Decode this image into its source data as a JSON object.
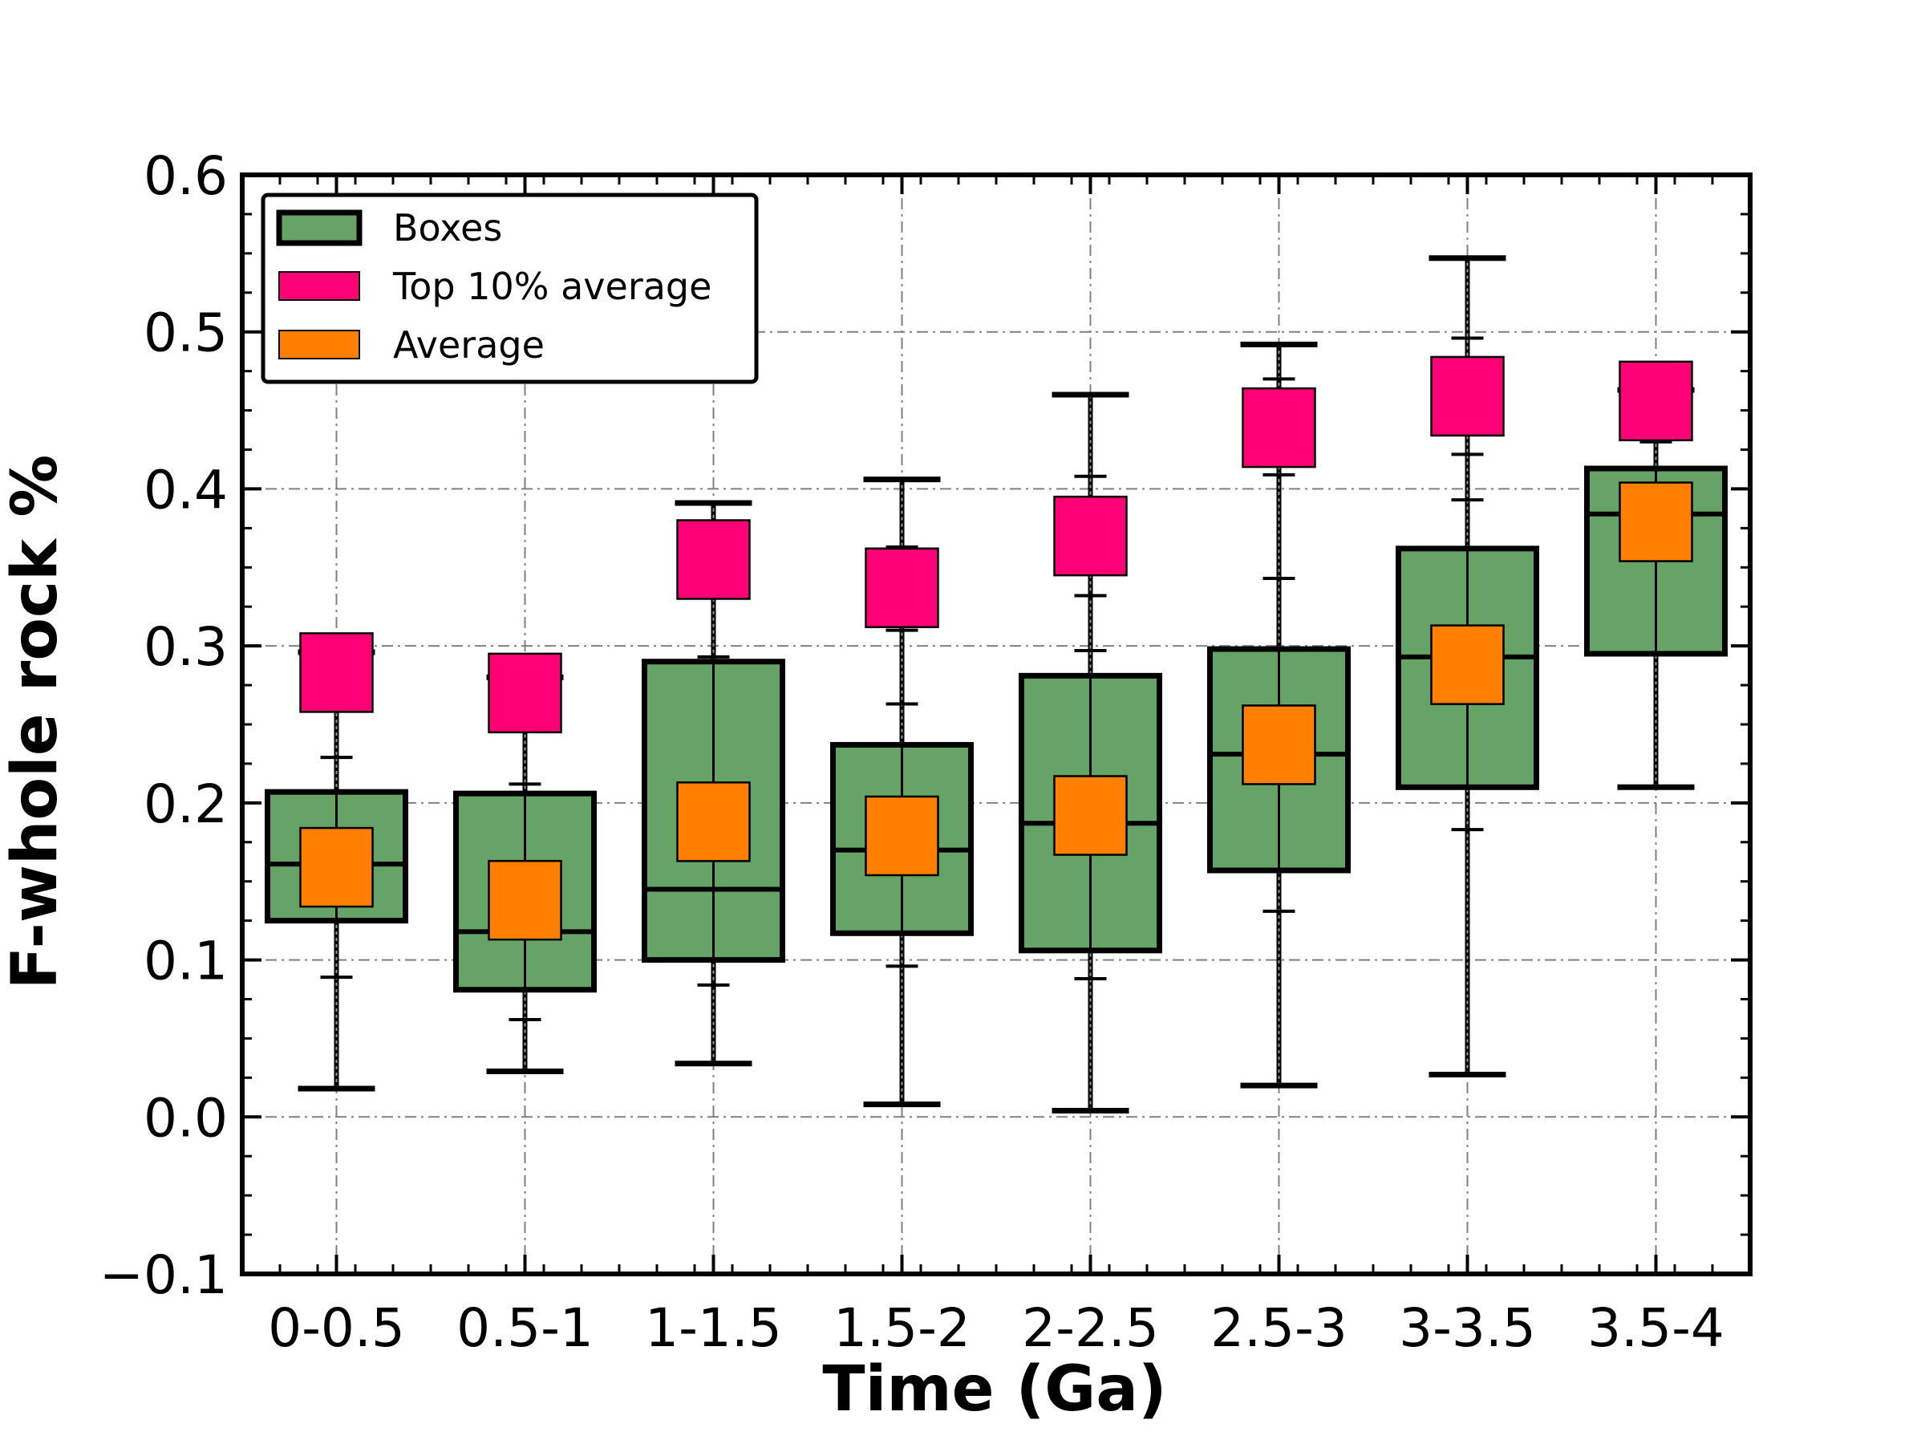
{
  "chart_data": {
    "type": "box",
    "xlabel": "Time (Ga)",
    "ylabel": "F-whole rock %",
    "ylim": [
      -0.1,
      0.6
    ],
    "yticks": [
      -0.1,
      0.0,
      0.1,
      0.2,
      0.3,
      0.4,
      0.5,
      0.6
    ],
    "ytick_labels": [
      "−0.1",
      "0.0",
      "0.1",
      "0.2",
      "0.3",
      "0.4",
      "0.5",
      "0.6"
    ],
    "grid": true,
    "legend_position": "top-left",
    "legend": [
      {
        "label": "Boxes",
        "color": "#66a366"
      },
      {
        "label": "Top 10% average",
        "color": "#ff0077"
      },
      {
        "label": "Average",
        "color": "#ff7f00"
      }
    ],
    "categories": [
      "0-0.5",
      "0.5-1",
      "1-1.5",
      "1.5-2",
      "2-2.5",
      "2.5-3",
      "3-3.5",
      "3.5-4"
    ],
    "whisker_low": [
      0.018,
      0.029,
      0.034,
      0.008,
      0.004,
      0.02,
      0.027,
      0.21
    ],
    "q1": [
      0.125,
      0.081,
      0.1,
      0.117,
      0.106,
      0.157,
      0.21,
      0.295
    ],
    "median": [
      0.161,
      0.118,
      0.145,
      0.17,
      0.187,
      0.231,
      0.293,
      0.384
    ],
    "q3": [
      0.207,
      0.206,
      0.29,
      0.237,
      0.281,
      0.298,
      0.362,
      0.413
    ],
    "whisker_high": [
      0.296,
      0.28,
      0.391,
      0.406,
      0.46,
      0.492,
      0.547,
      0.463
    ],
    "average": [
      0.159,
      0.138,
      0.188,
      0.179,
      0.192,
      0.237,
      0.288,
      0.379
    ],
    "top10_average": [
      0.283,
      0.27,
      0.355,
      0.337,
      0.37,
      0.439,
      0.459,
      0.456
    ],
    "inner_ticks_low": [
      0.089,
      0.062,
      0.084,
      0.096,
      0.088,
      0.131,
      0.183,
      0.317
    ],
    "inner_ticks_high": [
      0.229,
      0.212,
      0.293,
      0.263,
      0.297,
      0.343,
      0.393,
      0.43
    ],
    "upper_extra_ticks": [
      [],
      [],
      [],
      [
        0.363,
        0.31
      ],
      [
        0.408,
        0.332
      ],
      [
        0.47,
        0.409
      ],
      [
        0.496,
        0.422
      ],
      []
    ],
    "colors": {
      "box_fill": "#66a366",
      "top10": "#ff0077",
      "average": "#ff7f00",
      "grid": "#808080"
    }
  }
}
